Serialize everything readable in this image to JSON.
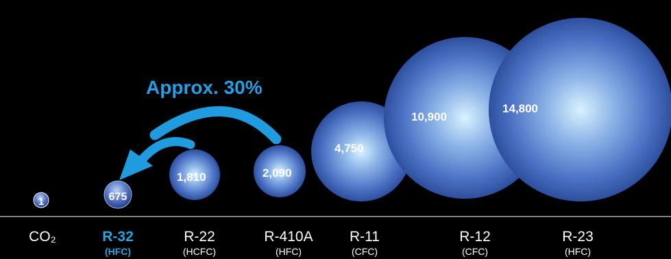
{
  "chart_data": {
    "type": "bubble",
    "title": "",
    "xlabel": "",
    "ylabel": "",
    "categories": [
      "CO2",
      "R-32",
      "R-22",
      "R-410A",
      "R-11",
      "R-12",
      "R-23"
    ],
    "labels": [
      "CO₂",
      "R-32",
      "R-22",
      "R-410A",
      "R-11",
      "R-12",
      "R-23"
    ],
    "classes": [
      "",
      "(HFC)",
      "(HCFC)",
      "(HFC)",
      "(CFC)",
      "(CFC)",
      "(HFC)"
    ],
    "values": [
      1,
      675,
      1810,
      2090,
      4750,
      10900,
      14800
    ],
    "value_labels": [
      "1",
      "675",
      "1,810",
      "2,090",
      "4,750",
      "10,900",
      "14,800"
    ],
    "highlight": "R-32",
    "annotation": "Approx. 30%",
    "colors": {
      "background": "#000000",
      "bubble_center": "#d9f2ff",
      "bubble_edge": "#2f4f9e",
      "highlight": "#2aa3e0",
      "arrow": "#1f9ce0"
    }
  }
}
